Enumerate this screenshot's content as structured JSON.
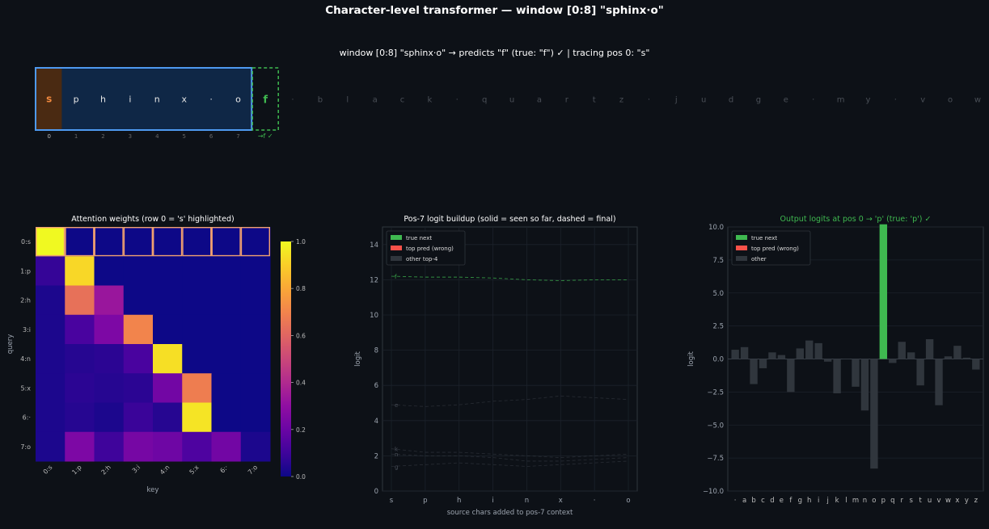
{
  "header": {
    "title": "Character-level transformer  —  window [0:8]  \"sphinx·o\"",
    "subtitle": "window [0:8]  \"sphinx·o\"  →  predicts \"f\" (true: \"f\") ✓   |   tracing pos 0: \"s\""
  },
  "colors": {
    "background": "#0d1117",
    "window_border": "#4e9af1",
    "window_fill": "#0f2746",
    "traced_cell": "#4a2a12",
    "traced_letter": "#f0883e",
    "correct": "#3fb950",
    "wrong": "#f85149",
    "other": "#30363d",
    "highlight_row": "#f0a070"
  },
  "strip": {
    "window_chars": [
      "s",
      "p",
      "h",
      "i",
      "n",
      "x",
      "·",
      "o"
    ],
    "window_indices": [
      "0",
      "1",
      "2",
      "3",
      "4",
      "5",
      "6",
      "7"
    ],
    "next_char": "f",
    "next_label": "→f ✓",
    "traced_index": 0,
    "rest_chars": [
      "·",
      "b",
      "l",
      "a",
      "c",
      "k",
      "·",
      "q",
      "u",
      "a",
      "r",
      "t",
      "z",
      "·",
      "j",
      "u",
      "d",
      "g",
      "e",
      "·",
      "m",
      "y",
      "·",
      "v",
      "o",
      "w"
    ]
  },
  "chart_data": [
    {
      "type": "heatmap",
      "title": "Attention weights  (row 0 = 's' highlighted)",
      "xlabel": "key",
      "ylabel": "query",
      "row_labels": [
        "0:s",
        "1:p",
        "2:h",
        "3:i",
        "4:n",
        "5:x",
        "6:·",
        "7:o"
      ],
      "col_labels": [
        "0:s",
        "1:p",
        "2:h",
        "3:i",
        "4:n",
        "5:x",
        "6:·",
        "7:o"
      ],
      "highlight_row": 0,
      "colorbar": {
        "min": 0,
        "max": 1,
        "ticks": [
          "0.0",
          "0.2",
          "0.4",
          "0.6",
          "0.8",
          "1.0"
        ]
      },
      "matrix": [
        [
          1.0,
          0.0,
          0.0,
          0.0,
          0.0,
          0.0,
          0.0,
          0.0
        ],
        [
          0.08,
          0.92,
          0.0,
          0.0,
          0.0,
          0.0,
          0.0,
          0.0
        ],
        [
          0.03,
          0.64,
          0.33,
          0.0,
          0.0,
          0.0,
          0.0,
          0.0
        ],
        [
          0.03,
          0.12,
          0.25,
          0.7,
          0.0,
          0.0,
          0.0,
          0.0
        ],
        [
          0.03,
          0.05,
          0.06,
          0.12,
          0.94,
          0.0,
          0.0,
          0.0
        ],
        [
          0.03,
          0.06,
          0.05,
          0.06,
          0.22,
          0.68,
          0.0,
          0.0
        ],
        [
          0.03,
          0.05,
          0.03,
          0.09,
          0.05,
          0.95,
          0.0,
          0.0
        ],
        [
          0.03,
          0.25,
          0.1,
          0.23,
          0.21,
          0.13,
          0.22,
          0.03
        ]
      ]
    },
    {
      "type": "line",
      "title": "Pos-7 logit buildup  (solid = seen so far, dashed = final)",
      "xlabel": "source chars added to pos-7 context",
      "ylabel": "logit",
      "categories": [
        "s",
        "p",
        "h",
        "i",
        "n",
        "x",
        "·",
        "o"
      ],
      "ylim": [
        0,
        15
      ],
      "yticks": [
        "0",
        "2",
        "4",
        "6",
        "8",
        "10",
        "12",
        "14"
      ],
      "legend": {
        "position": "top-left",
        "entries": [
          "true next",
          "top pred (wrong)",
          "other top-4"
        ]
      },
      "series": [
        {
          "name": "f",
          "role": "true",
          "values": [
            12.2,
            12.15,
            12.15,
            12.1,
            12.0,
            11.95,
            12.0,
            12.0
          ]
        },
        {
          "name": "e",
          "role": "other",
          "values": [
            4.9,
            4.8,
            4.9,
            5.1,
            5.2,
            5.4,
            5.3,
            5.2
          ]
        },
        {
          "name": "k",
          "role": "other",
          "values": [
            2.4,
            2.2,
            2.2,
            2.1,
            2.0,
            1.9,
            2.0,
            2.1
          ]
        },
        {
          "name": "n",
          "role": "other",
          "values": [
            2.1,
            2.0,
            2.0,
            1.9,
            1.7,
            1.7,
            1.8,
            1.9
          ]
        },
        {
          "name": "g",
          "role": "other",
          "values": [
            1.4,
            1.5,
            1.6,
            1.5,
            1.4,
            1.5,
            1.6,
            1.7
          ]
        }
      ]
    },
    {
      "type": "bar",
      "title": "Output logits at pos 0  →  'p'  (true: 'p') ✓",
      "ylabel": "logit",
      "categories": [
        "·",
        "a",
        "b",
        "c",
        "d",
        "e",
        "f",
        "g",
        "h",
        "i",
        "j",
        "k",
        "l",
        "m",
        "n",
        "o",
        "p",
        "q",
        "r",
        "s",
        "t",
        "u",
        "v",
        "w",
        "x",
        "y",
        "z"
      ],
      "values": [
        0.7,
        0.9,
        -1.9,
        -0.7,
        0.5,
        0.3,
        -2.5,
        0.8,
        1.4,
        1.2,
        -0.2,
        -2.6,
        0.0,
        -2.1,
        -3.9,
        -8.3,
        10.2,
        -0.3,
        1.3,
        0.5,
        -2.0,
        1.5,
        -3.5,
        0.2,
        1.0,
        0.1,
        -0.8
      ],
      "true_index": 16,
      "ylim": [
        -10,
        10
      ],
      "yticks": [
        "−10.0",
        "−7.5",
        "−5.0",
        "−2.5",
        "0.0",
        "2.5",
        "5.0",
        "7.5",
        "10.0"
      ],
      "legend": {
        "position": "top-left",
        "entries": [
          "true next",
          "top pred (wrong)",
          "other"
        ]
      }
    }
  ]
}
